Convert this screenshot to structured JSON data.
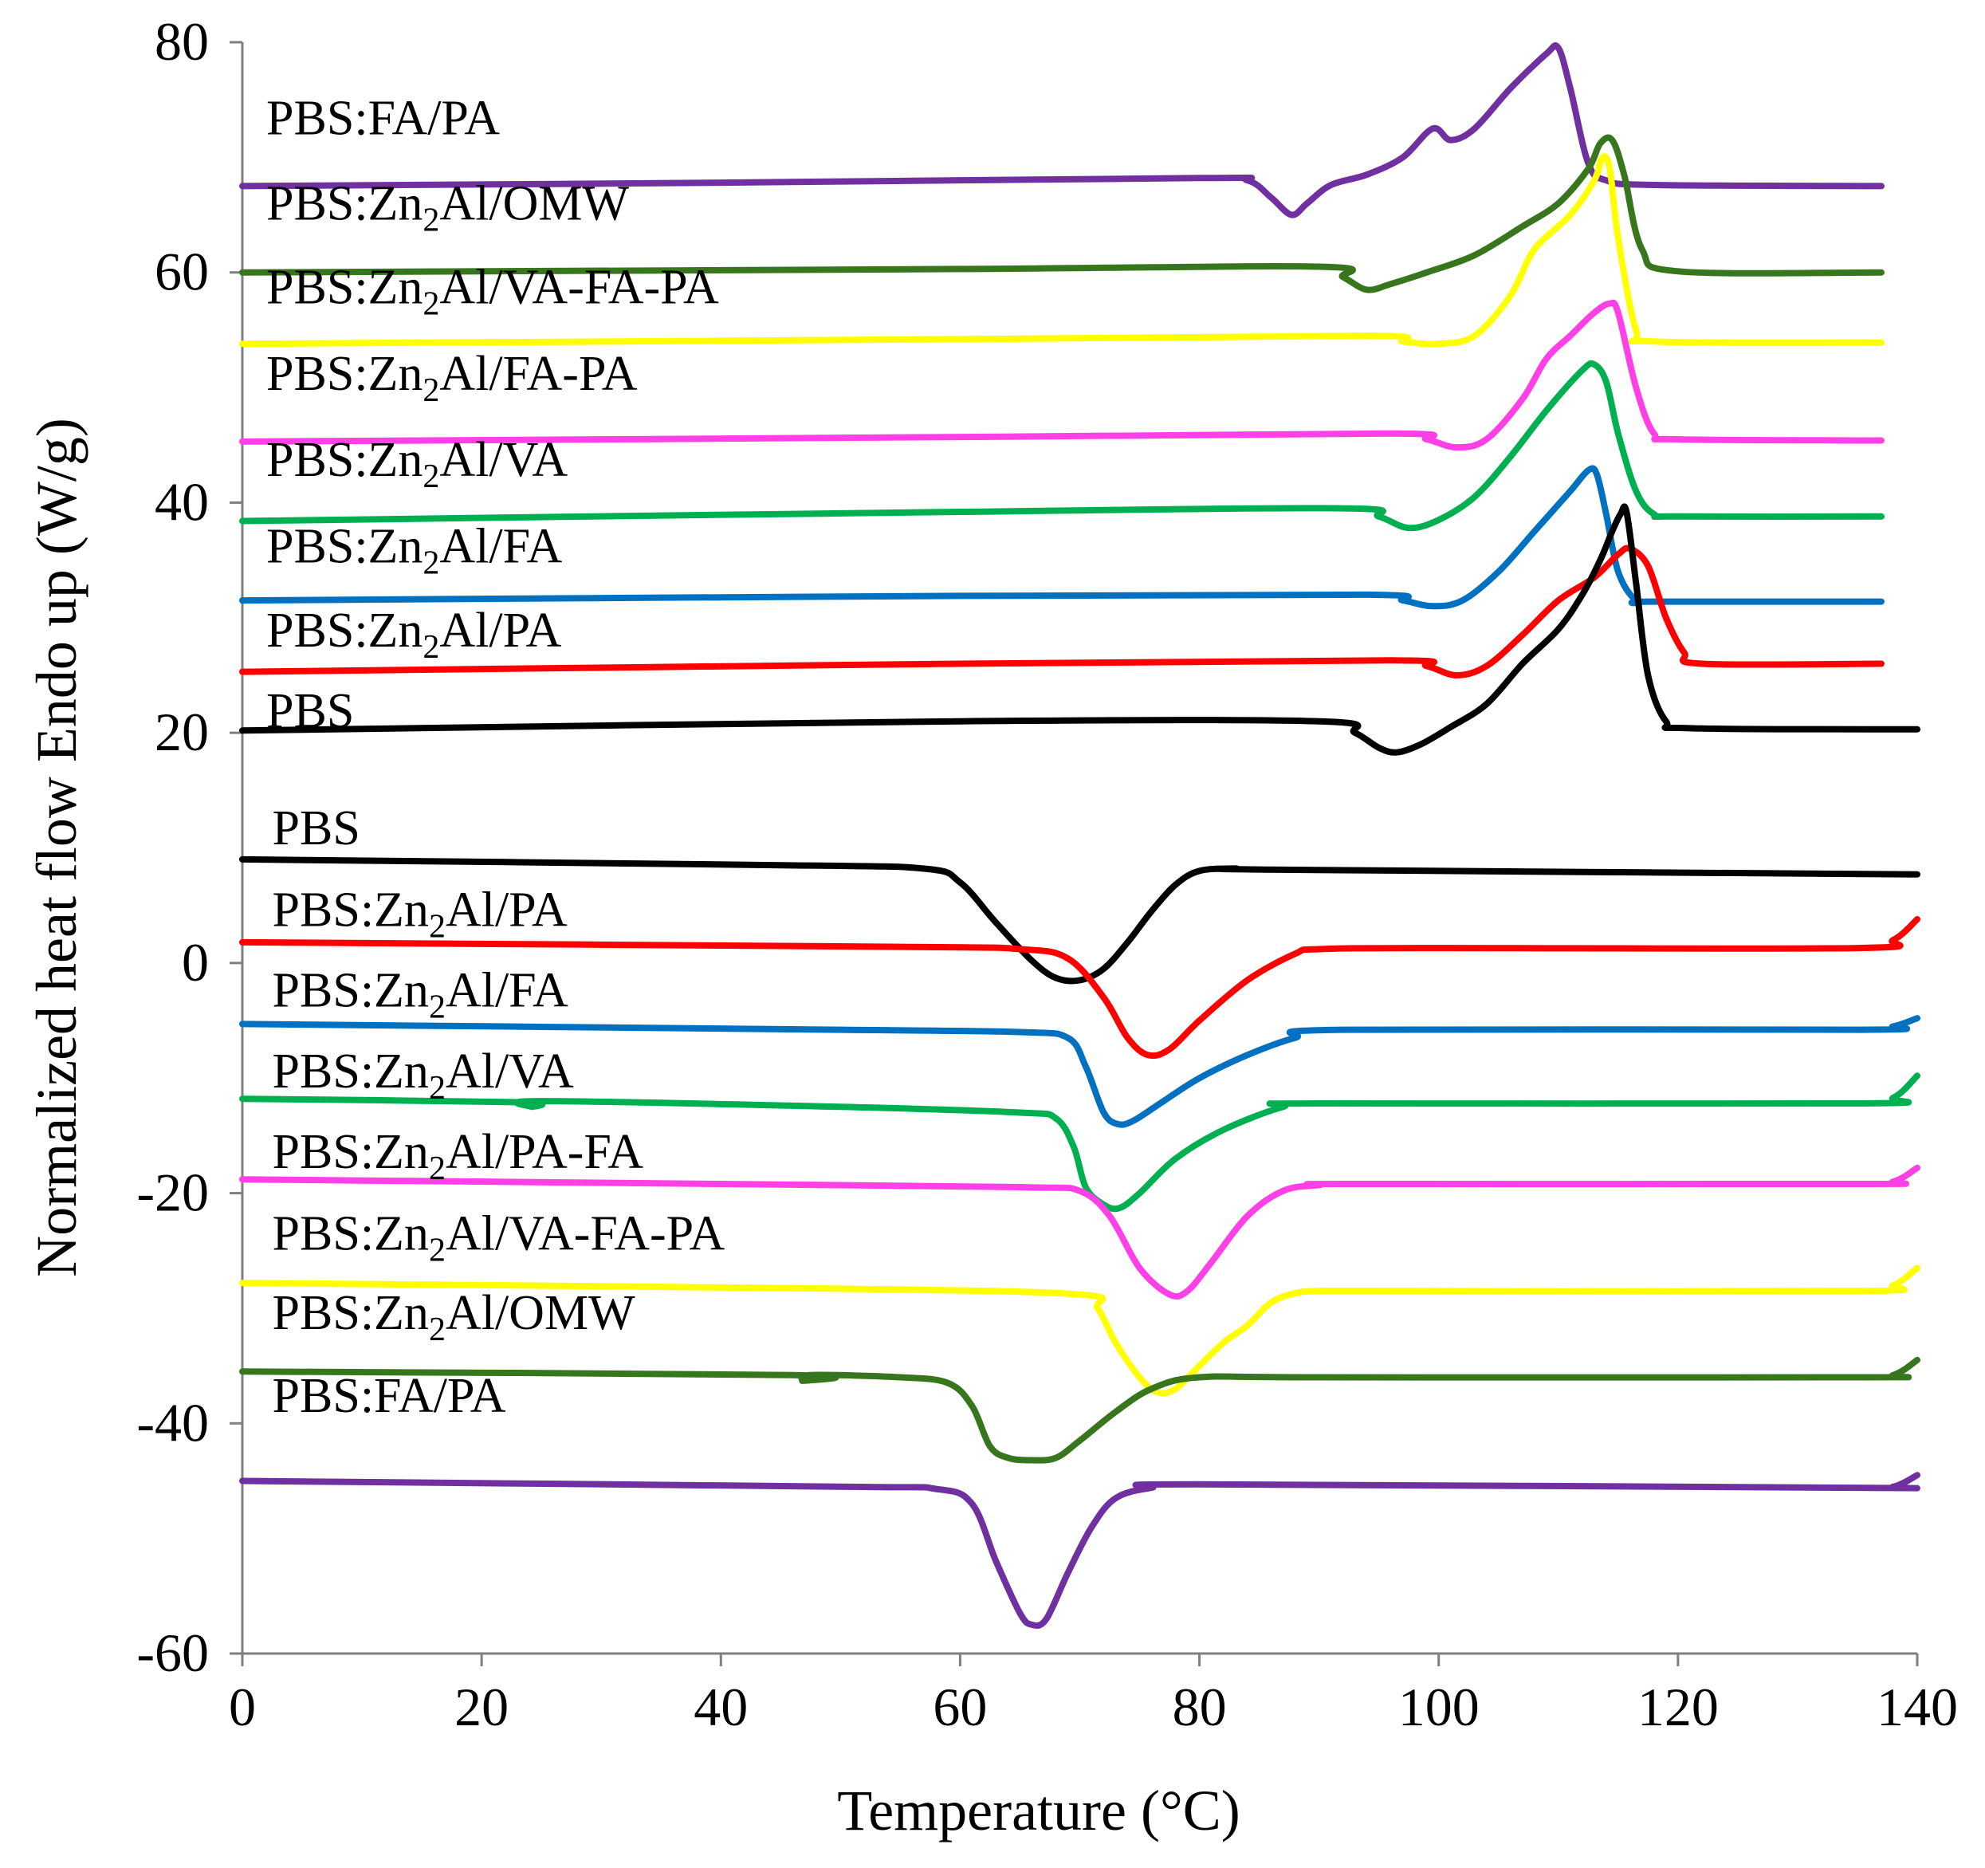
{
  "chart_data": {
    "type": "line",
    "xlabel": "Temperature (°C)",
    "ylabel": "Normalized heat flow Endo up (W/g)",
    "xlim": [
      0,
      140
    ],
    "ylim": [
      -60,
      80
    ],
    "xticks": [
      "0",
      "20",
      "40",
      "60",
      "80",
      "100",
      "120",
      "140"
    ],
    "yticks": [
      "-60",
      "-40",
      "-20",
      "0",
      "20",
      "40",
      "60",
      "80"
    ],
    "grid": false,
    "series": [
      {
        "name": "PBS:FA/PA",
        "color": "#7030a0",
        "label_base": "PBS:FA/PA",
        "label_sub": "",
        "label_x": 2,
        "label_y": 72,
        "x": [
          0,
          40,
          80,
          84,
          86,
          87.7,
          89,
          91,
          94,
          97,
          99.5,
          101,
          103,
          106,
          109,
          110,
          111,
          112.5,
          114,
          118,
          137
        ],
        "y": [
          67.5,
          67.8,
          68.2,
          68,
          66.5,
          65,
          66,
          67.6,
          68.5,
          70,
          72.5,
          71.5,
          72.5,
          76,
          79,
          79.5,
          76,
          69.5,
          68,
          67.6,
          67.5
        ]
      },
      {
        "name": "PBS:Zn2Al/OMW",
        "color": "#38761d",
        "label_base": "PBS:Zn",
        "label_sub": "2",
        "label_tail": "Al/OMW",
        "label_x": 2,
        "label_y": 64.6,
        "x": [
          0,
          60,
          90,
          92,
          94,
          96,
          99,
          103,
          107,
          110,
          112.5,
          113.5,
          114.5,
          115.5,
          117,
          120,
          137
        ],
        "y": [
          60,
          60.3,
          60.5,
          59.6,
          58.5,
          59,
          60,
          61.5,
          64,
          66,
          69,
          71.2,
          71.5,
          68.5,
          62,
          60.1,
          60
        ]
      },
      {
        "name": "PBS:Zn2Al/VA-FA-PA",
        "color": "#ffff00",
        "label_base": "PBS:Zn",
        "label_sub": "2",
        "label_tail": "Al/VA-FA-PA",
        "label_x": 2,
        "label_y": 57.3,
        "x": [
          0,
          60,
          94,
          97,
          100,
          103,
          106,
          108,
          111,
          113,
          113.7,
          114.3,
          115,
          116.5,
          118,
          137
        ],
        "y": [
          53.8,
          54.2,
          54.5,
          54,
          53.8,
          54.5,
          58,
          62,
          65,
          68,
          70,
          69,
          63,
          55,
          54,
          53.9
        ]
      },
      {
        "name": "PBS:Zn2Al/FA-PA",
        "color": "#ff40e6",
        "label_base": "PBS:Zn",
        "label_sub": "2",
        "label_tail": "Al/FA-PA",
        "label_x": 2,
        "label_y": 49.8,
        "x": [
          0,
          60,
          96,
          99,
          101.5,
          104,
          107,
          109,
          111,
          113,
          114.3,
          115,
          116.5,
          118,
          120,
          137
        ],
        "y": [
          45.3,
          45.7,
          46,
          45.5,
          44.8,
          45.5,
          49,
          52.5,
          54.5,
          56.5,
          57.3,
          56.5,
          50,
          46,
          45.5,
          45.4
        ]
      },
      {
        "name": "PBS:Zn2Al/VA",
        "color": "#00b050",
        "label_base": "PBS:Zn",
        "label_sub": "2",
        "label_tail": "Al/VA",
        "label_x": 2,
        "label_y": 42.3,
        "x": [
          0,
          60,
          92,
          95,
          97.5,
          100,
          103,
          106,
          109,
          112,
          113,
          114,
          115,
          116.5,
          118,
          120,
          137
        ],
        "y": [
          38.4,
          39.2,
          39.5,
          38.8,
          37.8,
          38.5,
          40.5,
          44,
          48,
          51.5,
          52,
          50.5,
          46,
          41,
          39,
          38.8,
          38.8
        ]
      },
      {
        "name": "PBS:Zn2Al/FA",
        "color": "#0070c0",
        "label_base": "PBS:Zn",
        "label_sub": "2",
        "label_tail": "Al/FA",
        "label_x": 2,
        "label_y": 34.8,
        "x": [
          0,
          60,
          94,
          97,
          99.5,
          102,
          105,
          108,
          111,
          112.5,
          113.2,
          114,
          115,
          116.5,
          118,
          137
        ],
        "y": [
          31.5,
          31.9,
          32,
          31.5,
          31,
          31.5,
          34,
          37.5,
          41,
          42.8,
          42.5,
          39,
          34,
          31.5,
          31.4,
          31.4
        ]
      },
      {
        "name": "PBS:Zn2Al/PA",
        "color": "#ff0000",
        "label_base": "PBS:Zn",
        "label_sub": "2",
        "label_tail": "Al/PA",
        "label_x": 2,
        "label_y": 27.5,
        "x": [
          0,
          60,
          96,
          99,
          101.5,
          104,
          107,
          110,
          113,
          115,
          116,
          117.5,
          119,
          120.5,
          122,
          137
        ],
        "y": [
          25.3,
          26,
          26.3,
          25.8,
          25,
          25.8,
          28.5,
          31.5,
          33.5,
          35.5,
          36,
          34.5,
          30,
          27,
          26,
          26
        ]
      },
      {
        "name": "PBS",
        "color": "#000000",
        "label_base": "PBS",
        "label_sub": "",
        "label_x": 2,
        "label_y": 20.5,
        "x": [
          0,
          60,
          90,
          93,
          95,
          96.5,
          98.5,
          101,
          104,
          107,
          110,
          112,
          113.5,
          114.5,
          115.2,
          115.7,
          116.5,
          117.5,
          119,
          121,
          140
        ],
        "y": [
          20.2,
          21,
          21,
          20,
          18.7,
          18.3,
          19,
          20.5,
          22.5,
          26,
          29,
          32,
          35,
          37.5,
          39,
          39.2,
          33,
          25,
          21,
          20.4,
          20.3
        ]
      },
      {
        "name": "PBS",
        "color": "#000000",
        "label_base": "PBS",
        "label_sub": "",
        "label_x": 2.5,
        "label_y": 10.3,
        "x": [
          0,
          45,
          57,
          60,
          63,
          66,
          68,
          70,
          72,
          74,
          76,
          78,
          80,
          83,
          87,
          140
        ],
        "y": [
          9,
          8.5,
          8.2,
          7,
          3.5,
          0.2,
          -1.3,
          -1.5,
          -0.5,
          1.8,
          4.5,
          6.8,
          8,
          8.2,
          8.1,
          7.7
        ]
      },
      {
        "name": "PBS:Zn2Al/PA",
        "color": "#ff0000",
        "label_base": "PBS:Zn",
        "label_sub": "2",
        "label_tail": "Al/PA",
        "label_x": 2.5,
        "label_y": 3.2,
        "x": [
          0,
          55,
          65,
          69,
          72,
          74,
          75.7,
          77.5,
          80,
          84,
          88,
          90,
          100,
          135,
          138,
          140
        ],
        "y": [
          1.8,
          1.4,
          1.2,
          0.4,
          -3,
          -6.5,
          -8,
          -7.5,
          -5,
          -1.5,
          0.8,
          1.2,
          1.3,
          1.3,
          2,
          3.8
        ]
      },
      {
        "name": "PBS:Zn2Al/FA",
        "color": "#0070c0",
        "label_base": "PBS:Zn",
        "label_sub": "2",
        "label_tail": "Al/FA",
        "label_x": 2.5,
        "label_y": -3.8,
        "x": [
          0,
          50,
          65,
          69,
          70.5,
          72,
          73.2,
          74.5,
          77,
          80,
          84,
          88,
          92,
          135,
          138,
          140
        ],
        "y": [
          -5.3,
          -5.8,
          -6,
          -6.5,
          -9,
          -13,
          -14,
          -13.7,
          -12,
          -10,
          -8,
          -6.5,
          -5.8,
          -5.8,
          -5.5,
          -4.8
        ]
      },
      {
        "name": "PBS:Zn2Al/VA",
        "color": "#00b050",
        "label_base": "PBS:Zn",
        "label_sub": "2",
        "label_tail": "Al/VA",
        "label_x": 2.5,
        "label_y": -10.8,
        "x": [
          0,
          23,
          24.2,
          25,
          50,
          65,
          68,
          69.5,
          70.5,
          72,
          73.3,
          75,
          78,
          82,
          87,
          90,
          135,
          138,
          140
        ],
        "y": [
          -11.8,
          -12.1,
          -12.5,
          -12,
          -12.5,
          -13,
          -13.5,
          -16,
          -19.5,
          -21,
          -21.3,
          -20,
          -17,
          -14.5,
          -12.5,
          -12.2,
          -12.2,
          -11.7,
          -9.8
        ]
      },
      {
        "name": "PBS:Zn2Al/PA-FA",
        "color": "#ff40e6",
        "label_base": "PBS:Zn",
        "label_sub": "2",
        "label_tail": "Al/PA-FA",
        "label_x": 2.5,
        "label_y": -17.8,
        "x": [
          0,
          50,
          66,
          70,
          72.5,
          75,
          77.5,
          79,
          81,
          84,
          87,
          90,
          93,
          135,
          138,
          140
        ],
        "y": [
          -18.8,
          -19.3,
          -19.5,
          -19.8,
          -22,
          -26.5,
          -28.8,
          -28.5,
          -26,
          -22,
          -19.8,
          -19.3,
          -19.2,
          -19.2,
          -19,
          -17.8
        ]
      },
      {
        "name": "PBS:Zn2Al/VA-FA-PA",
        "color": "#ffff00",
        "label_base": "PBS:Zn",
        "label_sub": "2",
        "label_tail": "Al/VA-FA-PA",
        "label_x": 2.5,
        "label_y": -24.9,
        "x": [
          0,
          50,
          70,
          71.5,
          73,
          75,
          76.5,
          78,
          80,
          82,
          84,
          86,
          88,
          90,
          95,
          135,
          138,
          140
        ],
        "y": [
          -27.8,
          -28.3,
          -28.8,
          -30,
          -33,
          -36,
          -37.3,
          -37,
          -35,
          -33,
          -31.5,
          -29.5,
          -28.7,
          -28.5,
          -28.5,
          -28.5,
          -28,
          -26.5
        ]
      },
      {
        "name": "PBS:Zn2Al/OMW",
        "color": "#38761d",
        "label_base": "PBS:Zn",
        "label_sub": "2",
        "label_tail": "Al/OMW",
        "label_x": 2.5,
        "label_y": -31.8,
        "x": [
          0,
          46,
          46.8,
          47.5,
          55,
          59,
          61,
          62.5,
          64,
          66,
          68,
          70,
          73,
          76,
          80,
          90,
          135,
          138,
          140
        ],
        "y": [
          -35.5,
          -35.8,
          -36.3,
          -35.8,
          -36,
          -36.5,
          -38.5,
          -42,
          -43,
          -43.2,
          -43,
          -41.5,
          -39,
          -37,
          -36,
          -36,
          -36,
          -35.8,
          -34.5
        ]
      },
      {
        "name": "PBS:FA/PA",
        "color": "#7030a0",
        "label_base": "PBS:FA/PA",
        "label_sub": "",
        "label_x": 2.5,
        "label_y": -39,
        "x": [
          0,
          50,
          58,
          61,
          63,
          65,
          66,
          67.2,
          69,
          71,
          73,
          76,
          80,
          135,
          138,
          140
        ],
        "y": [
          -45,
          -45.5,
          -45.7,
          -47,
          -52,
          -56.5,
          -57.5,
          -57,
          -53,
          -49,
          -46.5,
          -45.6,
          -45.3,
          -45.6,
          -45.5,
          -44.5
        ]
      }
    ]
  }
}
